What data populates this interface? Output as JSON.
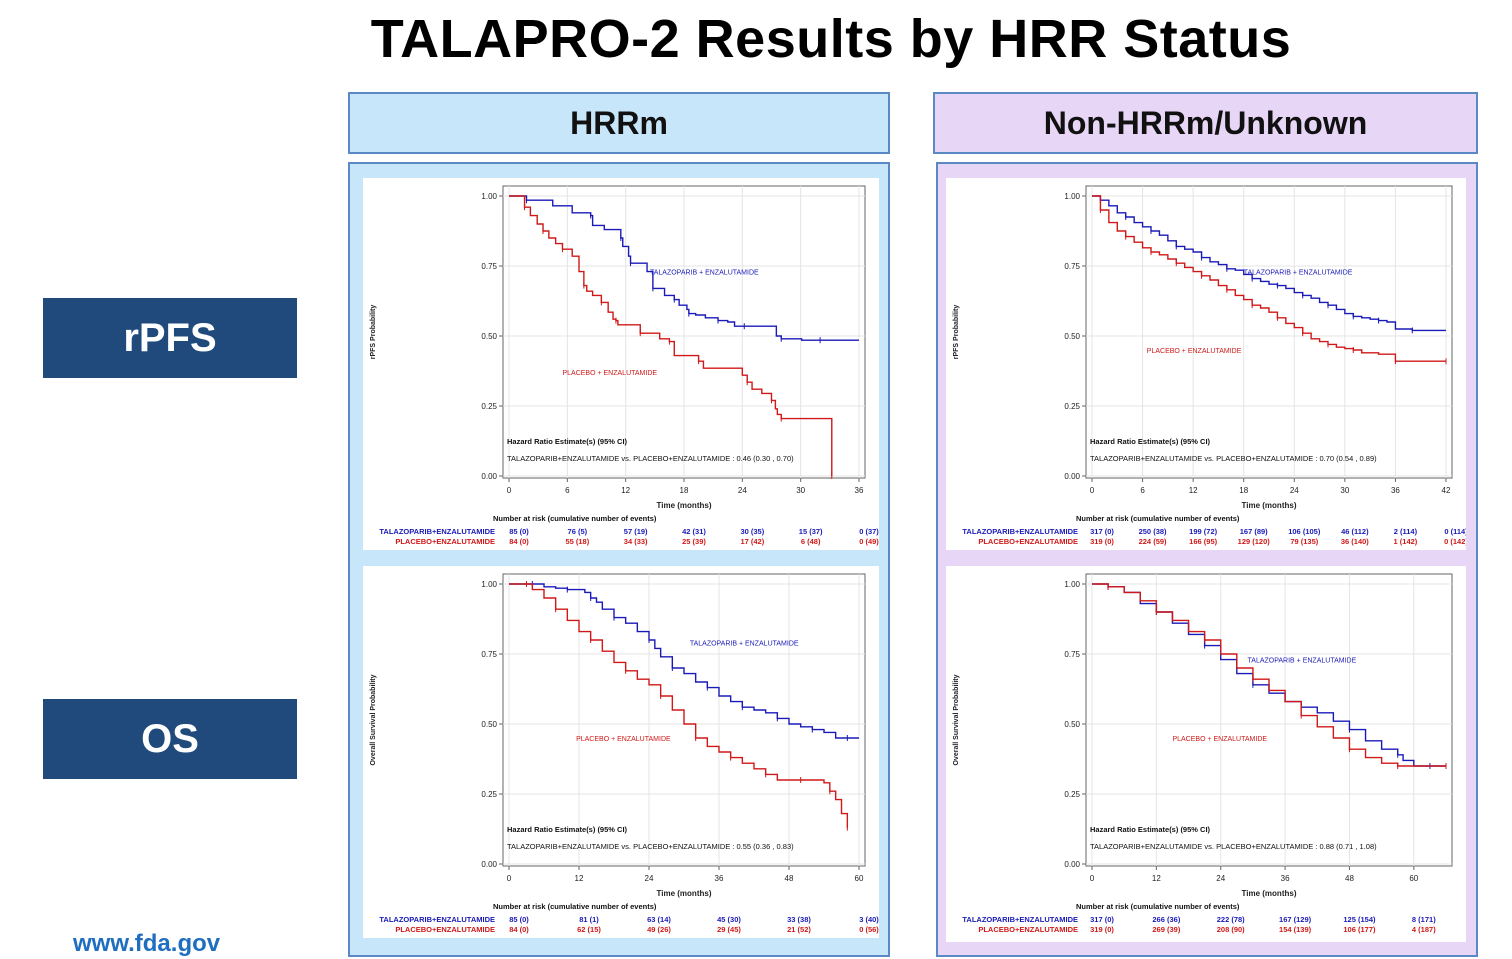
{
  "title": "TALAPRO-2 Results by HRR Status",
  "rows": {
    "rpfs": "rPFS",
    "os": "OS"
  },
  "columns": {
    "hrrm": "HRRm",
    "non_hrrm": "Non-HRRm/Unknown"
  },
  "footer": "www.fda.gov",
  "colors": {
    "talazoparib": "#1a1ab8",
    "placebo": "#d01818",
    "row_label_bg": "#1f4a7b",
    "hrrm_bg": "#c8e6fa",
    "non_hrrm_bg": "#e8d6f7",
    "border": "#5b89c6"
  },
  "chart_data": [
    {
      "id": "hrrm_rpfs",
      "type": "line",
      "ylabel": "rPFS Probability",
      "xlabel": "Time (months)",
      "xlim": [
        0,
        36
      ],
      "xticks": [
        "0",
        "6",
        "12",
        "18",
        "24",
        "30",
        "36"
      ],
      "ylim": [
        0,
        1
      ],
      "yticks": [
        "0.00",
        "0.25",
        "0.50",
        "0.75",
        "1.00"
      ],
      "hr_title": "Hazard Ratio Estimate(s) (95% CI)",
      "hr_text": "TALAZOPARIB+ENZALUTAMIDE vs. PLACEBO+ENZALUTAMIDE : 0.46 (0.30 , 0.70)",
      "series": [
        {
          "name": "TALAZOPARIB + ENZALUTAMIDE",
          "label_at": [
            14.5,
            0.72
          ],
          "x": [
            0,
            1.8,
            4.5,
            6.5,
            8.4,
            8.6,
            9.8,
            11.5,
            11.7,
            12.3,
            12.5,
            13.5,
            14.2,
            14.8,
            15.2,
            16,
            17,
            17.5,
            18.3,
            18.5,
            19.2,
            20.2,
            21.5,
            22.5,
            23.2,
            24.2,
            26,
            27.5,
            28,
            28.3,
            30.1,
            32,
            33,
            36
          ],
          "y": [
            1,
            0.985,
            0.965,
            0.94,
            0.93,
            0.895,
            0.88,
            0.85,
            0.82,
            0.785,
            0.76,
            0.76,
            0.73,
            0.67,
            0.67,
            0.645,
            0.63,
            0.61,
            0.595,
            0.58,
            0.575,
            0.565,
            0.555,
            0.55,
            0.535,
            0.535,
            0.535,
            0.5,
            0.49,
            0.49,
            0.485,
            0.485,
            0.485,
            0.485
          ]
        },
        {
          "name": "PLACEBO + ENZALUTAMIDE",
          "label_at": [
            5.5,
            0.36
          ],
          "x": [
            0,
            1.6,
            2.2,
            2.9,
            3.5,
            4.1,
            4.8,
            5.5,
            6.5,
            7.2,
            7.7,
            8,
            8.6,
            9.5,
            10.2,
            10.7,
            11,
            11.2,
            11.3,
            13.5,
            14,
            15.5,
            16.5,
            17,
            18.5,
            19.5,
            20,
            24,
            24.5,
            25,
            26,
            27,
            27.4,
            27.6,
            28,
            28.3,
            33,
            33.2
          ],
          "y": [
            1,
            0.96,
            0.93,
            0.9,
            0.875,
            0.85,
            0.83,
            0.81,
            0.785,
            0.73,
            0.68,
            0.66,
            0.645,
            0.62,
            0.585,
            0.56,
            0.555,
            0.54,
            0.54,
            0.51,
            0.51,
            0.49,
            0.48,
            0.43,
            0.43,
            0.41,
            0.385,
            0.36,
            0.335,
            0.31,
            0.295,
            0.27,
            0.24,
            0.22,
            0.205,
            0.205,
            0.205,
            0
          ]
        }
      ],
      "risk": {
        "title": "Number at risk (cumulative number of events)",
        "rows": [
          {
            "name": "TALAZOPARIB+ENZALUTAMIDE",
            "values": [
              "85 (0)",
              "76 (5)",
              "57 (19)",
              "42 (31)",
              "30 (35)",
              "15 (37)",
              "0 (37)"
            ]
          },
          {
            "name": "PLACEBO+ENZALUTAMIDE",
            "values": [
              "84 (0)",
              "55 (18)",
              "34 (33)",
              "25 (39)",
              "17 (42)",
              "6 (48)",
              "0 (49)"
            ]
          }
        ]
      }
    },
    {
      "id": "non_hrrm_rpfs",
      "type": "line",
      "ylabel": "rPFS Probability",
      "xlabel": "Time (months)",
      "xlim": [
        0,
        42
      ],
      "xticks": [
        "0",
        "6",
        "12",
        "18",
        "24",
        "30",
        "36",
        "42"
      ],
      "ylim": [
        0,
        1
      ],
      "yticks": [
        "0.00",
        "0.25",
        "0.50",
        "0.75",
        "1.00"
      ],
      "hr_title": "Hazard Ratio Estimate(s) (95% CI)",
      "hr_text": "TALAZOPARIB+ENZALUTAMIDE vs. PLACEBO+ENZALUTAMIDE : 0.70 (0.54 , 0.89)",
      "series": [
        {
          "name": "TALAZOPARIB + ENZALUTAMIDE",
          "label_at": [
            18,
            0.72
          ],
          "x": [
            0,
            1,
            2,
            3,
            4,
            5,
            6,
            7,
            8,
            9,
            10,
            11,
            12,
            13,
            14,
            15,
            16,
            17,
            18,
            19,
            20,
            21,
            22,
            23,
            24,
            25,
            26,
            27,
            28,
            29,
            30,
            31,
            32,
            33,
            34,
            35,
            36,
            38,
            40,
            42
          ],
          "y": [
            1,
            0.985,
            0.965,
            0.94,
            0.925,
            0.905,
            0.89,
            0.875,
            0.86,
            0.84,
            0.82,
            0.81,
            0.8,
            0.78,
            0.765,
            0.755,
            0.74,
            0.735,
            0.72,
            0.705,
            0.695,
            0.685,
            0.68,
            0.67,
            0.655,
            0.645,
            0.635,
            0.62,
            0.61,
            0.595,
            0.58,
            0.57,
            0.565,
            0.56,
            0.555,
            0.55,
            0.525,
            0.52,
            0.52,
            0.52
          ]
        },
        {
          "name": "PLACEBO + ENZALUTAMIDE",
          "label_at": [
            6.5,
            0.44
          ],
          "x": [
            0,
            1,
            2,
            3,
            4,
            5,
            6,
            7,
            8,
            9,
            10,
            11,
            12,
            13,
            14,
            15,
            16,
            17,
            18,
            19,
            20,
            21,
            22,
            23,
            24,
            25,
            26,
            27,
            28,
            29,
            30,
            31,
            32,
            34,
            36,
            38,
            40,
            42
          ],
          "y": [
            1,
            0.95,
            0.905,
            0.875,
            0.855,
            0.835,
            0.815,
            0.8,
            0.79,
            0.775,
            0.76,
            0.745,
            0.73,
            0.715,
            0.7,
            0.68,
            0.665,
            0.645,
            0.63,
            0.61,
            0.6,
            0.585,
            0.565,
            0.545,
            0.53,
            0.51,
            0.49,
            0.48,
            0.47,
            0.46,
            0.455,
            0.45,
            0.44,
            0.435,
            0.41,
            0.41,
            0.41,
            0.41
          ]
        }
      ],
      "risk": {
        "title": "Number at risk (cumulative number of events)",
        "rows": [
          {
            "name": "TALAZOPARIB+ENZALUTAMIDE",
            "values": [
              "317 (0)",
              "250 (38)",
              "199 (72)",
              "167 (89)",
              "106 (105)",
              "46 (112)",
              "2 (114)",
              "0 (114)"
            ]
          },
          {
            "name": "PLACEBO+ENZALUTAMIDE",
            "values": [
              "319 (0)",
              "224 (59)",
              "166 (95)",
              "129 (120)",
              "79 (135)",
              "36 (140)",
              "1 (142)",
              "0 (142)"
            ]
          }
        ]
      }
    },
    {
      "id": "hrrm_os",
      "type": "line",
      "ylabel": "Overall Survival Probability",
      "xlabel": "Time (months)",
      "xlim": [
        0,
        60
      ],
      "xticks": [
        "0",
        "12",
        "24",
        "36",
        "48",
        "60"
      ],
      "ylim": [
        0,
        1
      ],
      "yticks": [
        "0.00",
        "0.25",
        "0.50",
        "0.75",
        "1.00"
      ],
      "hr_title": "Hazard Ratio Estimate(s) (95% CI)",
      "hr_text": "TALAZOPARIB+ENZALUTAMIDE vs. PLACEBO+ENZALUTAMIDE : 0.55 (0.36 , 0.83)",
      "series": [
        {
          "name": "TALAZOPARIB + ENZALUTAMIDE",
          "label_at": [
            31,
            0.78
          ],
          "x": [
            0,
            4,
            6,
            8,
            10,
            12,
            13,
            14,
            15,
            16,
            18,
            20,
            22,
            24,
            25,
            26,
            28,
            30,
            32,
            34,
            36,
            38,
            40,
            42,
            44,
            46,
            48,
            50,
            52,
            54,
            56,
            58,
            60
          ],
          "y": [
            1,
            1,
            0.99,
            0.985,
            0.98,
            0.98,
            0.97,
            0.95,
            0.935,
            0.91,
            0.88,
            0.86,
            0.83,
            0.8,
            0.77,
            0.74,
            0.7,
            0.68,
            0.65,
            0.63,
            0.6,
            0.58,
            0.56,
            0.55,
            0.54,
            0.52,
            0.5,
            0.49,
            0.48,
            0.47,
            0.45,
            0.45,
            0.45
          ]
        },
        {
          "name": "PLACEBO + ENZALUTAMIDE",
          "label_at": [
            11.5,
            0.44
          ],
          "x": [
            0,
            3,
            4,
            6,
            8,
            10,
            12,
            14,
            16,
            18,
            20,
            22,
            24,
            26,
            28,
            30,
            32,
            34,
            36,
            38,
            40,
            42,
            44,
            46,
            48,
            50,
            52,
            54,
            55,
            56,
            57,
            58
          ],
          "y": [
            1,
            1,
            0.98,
            0.95,
            0.91,
            0.87,
            0.83,
            0.8,
            0.76,
            0.72,
            0.69,
            0.66,
            0.64,
            0.6,
            0.55,
            0.5,
            0.45,
            0.42,
            0.4,
            0.38,
            0.36,
            0.34,
            0.32,
            0.3,
            0.3,
            0.3,
            0.3,
            0.29,
            0.26,
            0.23,
            0.18,
            0.13
          ]
        }
      ],
      "risk": {
        "title": "Number at risk (cumulative number of events)",
        "rows": [
          {
            "name": "TALAZOPARIB+ENZALUTAMIDE",
            "values": [
              "85 (0)",
              "81 (1)",
              "63 (14)",
              "45 (30)",
              "33 (38)",
              "3 (40)"
            ]
          },
          {
            "name": "PLACEBO+ENZALUTAMIDE",
            "values": [
              "84 (0)",
              "62 (15)",
              "49 (26)",
              "29 (45)",
              "21 (52)",
              "0 (56)"
            ]
          }
        ]
      }
    },
    {
      "id": "non_hrrm_os",
      "type": "line",
      "ylabel": "Overall Survival Probability",
      "xlabel": "Time (months)",
      "xlim": [
        0,
        66
      ],
      "xticks": [
        "0",
        "12",
        "24",
        "36",
        "48",
        "60"
      ],
      "ylim": [
        0,
        1
      ],
      "yticks": [
        "0.00",
        "0.25",
        "0.50",
        "0.75",
        "1.00"
      ],
      "hr_title": "Hazard Ratio Estimate(s) (95% CI)",
      "hr_text": "TALAZOPARIB+ENZALUTAMIDE vs. PLACEBO+ENZALUTAMIDE : 0.88 (0.71 , 1.08)",
      "series": [
        {
          "name": "TALAZOPARIB + ENZALUTAMIDE",
          "label_at": [
            29,
            0.72
          ],
          "x": [
            0,
            3,
            6,
            9,
            12,
            15,
            18,
            21,
            24,
            27,
            30,
            33,
            36,
            39,
            42,
            45,
            48,
            51,
            54,
            57,
            58,
            60,
            63,
            66
          ],
          "y": [
            1,
            0.99,
            0.97,
            0.93,
            0.9,
            0.86,
            0.82,
            0.78,
            0.73,
            0.68,
            0.64,
            0.61,
            0.58,
            0.56,
            0.54,
            0.51,
            0.48,
            0.44,
            0.41,
            0.39,
            0.37,
            0.35,
            0.35,
            0.35
          ]
        },
        {
          "name": "PLACEBO + ENZALUTAMIDE",
          "label_at": [
            15,
            0.44
          ],
          "x": [
            0,
            3,
            6,
            9,
            12,
            15,
            18,
            21,
            24,
            27,
            30,
            33,
            36,
            39,
            42,
            45,
            48,
            51,
            54,
            57,
            60,
            63,
            66
          ],
          "y": [
            1,
            0.99,
            0.97,
            0.94,
            0.9,
            0.87,
            0.83,
            0.8,
            0.75,
            0.7,
            0.66,
            0.62,
            0.58,
            0.53,
            0.49,
            0.45,
            0.41,
            0.38,
            0.36,
            0.35,
            0.35,
            0.35,
            0.35
          ]
        }
      ],
      "risk": {
        "title": "Number at risk (cumulative number of events)",
        "rows": [
          {
            "name": "TALAZOPARIB+ENZALUTAMIDE",
            "values": [
              "317 (0)",
              "266 (36)",
              "222 (78)",
              "167 (129)",
              "125 (154)",
              "8 (171)"
            ]
          },
          {
            "name": "PLACEBO+ENZALUTAMIDE",
            "values": [
              "319 (0)",
              "269 (39)",
              "208 (90)",
              "154 (139)",
              "106 (177)",
              "4 (187)"
            ]
          }
        ]
      }
    }
  ]
}
